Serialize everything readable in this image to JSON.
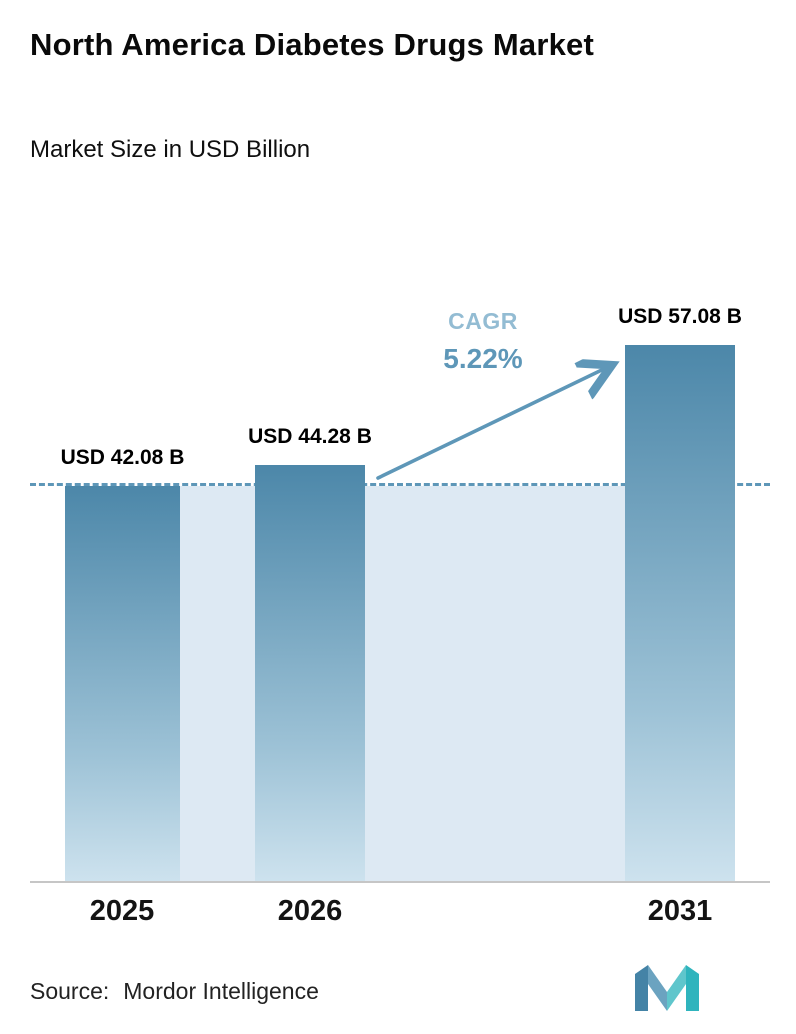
{
  "header": {
    "title": "North America Diabetes Drugs Market",
    "subtitle": "Market Size in USD Billion"
  },
  "chart_data": {
    "type": "bar",
    "title": "North America Diabetes Drugs Market",
    "subtitle": "Market Size in USD Billion",
    "unit": "USD Billion",
    "categories": [
      "2025",
      "2026",
      "2031"
    ],
    "values": [
      42.08,
      44.28,
      57.08
    ],
    "value_labels": [
      "USD 42.08 B",
      "USD 44.28 B",
      "USD 57.08 B"
    ],
    "cagr_label": "CAGR",
    "cagr_value": "5.22%",
    "baseline_value": 42.08,
    "ylim": [
      0,
      64
    ],
    "grid": false,
    "legend": false,
    "colors": {
      "accent": "#5e97b8",
      "cagr_light": "#93bcd3",
      "bar_top": "#4c87a9",
      "bar_mid": "#9dc2d6",
      "bar_bottom": "#cde2ee",
      "area_fill": "#dde9f3",
      "axis": "#c6c6c6",
      "logo_blue": "#4483a6",
      "logo_teal": "#2fb4bd"
    }
  },
  "footer": {
    "source_label": "Source:",
    "source_name": "Mordor Intelligence",
    "logo": "mordor-intelligence-logo"
  }
}
